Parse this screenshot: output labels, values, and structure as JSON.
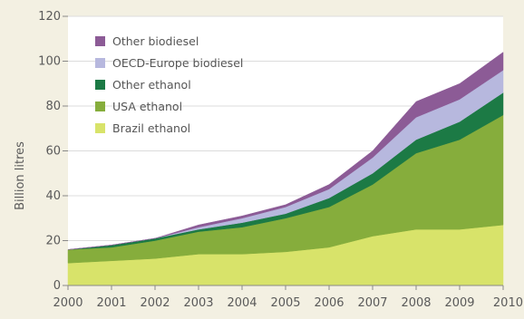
{
  "chart_data": {
    "type": "area",
    "stacked": true,
    "title": "",
    "xlabel": "",
    "ylabel": "Billion litres",
    "x": [
      "2000",
      "2001",
      "2002",
      "2003",
      "2004",
      "2005",
      "2006",
      "2007",
      "2008",
      "2009",
      "2010"
    ],
    "ylim": [
      0,
      120
    ],
    "yticks": [
      "0",
      "20",
      "40",
      "60",
      "80",
      "100",
      "120"
    ],
    "grid": "horizontal",
    "legend_position": "top-left",
    "series": [
      {
        "name": "Brazil ethanol",
        "color": "#d8e36a",
        "values": [
          10,
          11,
          12,
          14,
          14,
          15,
          17,
          22,
          25,
          25,
          27
        ]
      },
      {
        "name": "USA ethanol",
        "color": "#86ad3c",
        "values": [
          6,
          6,
          8,
          10,
          12,
          15,
          18,
          23,
          34,
          40,
          49
        ]
      },
      {
        "name": "Other ethanol",
        "color": "#1c7a45",
        "values": [
          0,
          1,
          1,
          1,
          2,
          2,
          4,
          5,
          6,
          8,
          10
        ]
      },
      {
        "name": "OECD-Europe biodiesel",
        "color": "#b7b8de",
        "values": [
          0,
          0,
          0,
          1,
          2,
          3,
          4,
          7,
          10,
          10,
          10
        ]
      },
      {
        "name": "Other biodiesel",
        "color": "#8c5b96",
        "values": [
          0,
          0,
          0,
          1,
          1,
          1,
          2,
          3,
          7,
          7,
          8
        ]
      }
    ]
  }
}
